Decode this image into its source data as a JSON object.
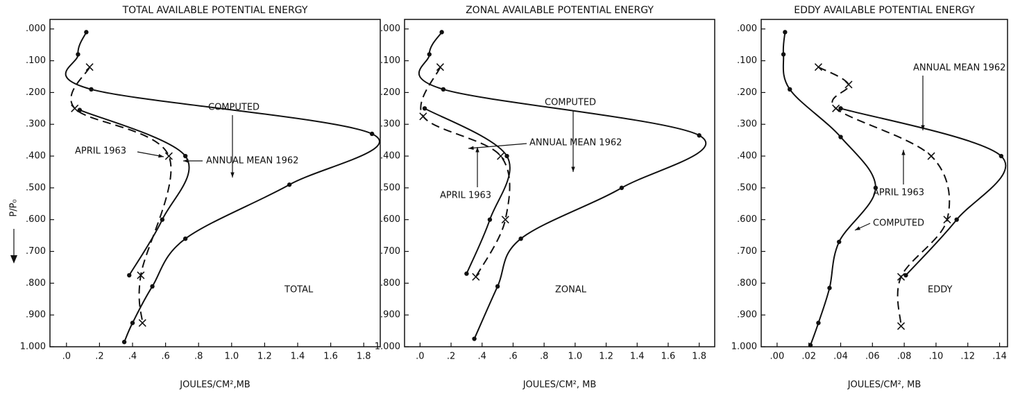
{
  "chart_data": [
    {
      "type": "line",
      "title": "TOTAL AVAILABLE POTENTIAL ENERGY",
      "xlabel": "JOULES/CM²,MB",
      "ylabel": "P/P₀",
      "xlim": [
        -0.1,
        1.9
      ],
      "ylim": [
        -0.03,
        1.0
      ],
      "y_inverted": true,
      "xticks": [
        {
          "value": 0,
          "label": ".0"
        },
        {
          "value": 0.2,
          "label": ".2"
        },
        {
          "value": 0.4,
          "label": ".4"
        },
        {
          "value": 0.6,
          "label": ".6"
        },
        {
          "value": 0.8,
          "label": ".8"
        },
        {
          "value": 1.0,
          "label": "1.0"
        },
        1.2,
        1.4,
        1.6,
        1.8
      ],
      "yticks": [
        {
          "value": 0,
          "label": ".000"
        },
        {
          "value": 0.1,
          "label": ".100"
        },
        {
          "value": 0.2,
          "label": ".200"
        },
        {
          "value": 0.3,
          "label": ".300"
        },
        {
          "value": 0.4,
          "label": ".400"
        },
        {
          "value": 0.5,
          "label": ".500"
        },
        {
          "value": 0.6,
          "label": ".600"
        },
        {
          "value": 0.7,
          "label": ".700"
        },
        {
          "value": 0.8,
          "label": ".800"
        },
        {
          "value": 0.9,
          "label": ".900"
        },
        {
          "value": 1.0,
          "label": "1.000"
        }
      ],
      "series": [
        {
          "name": "COMPUTED",
          "color": "#111111",
          "dashed": false,
          "marker": "dot",
          "x": [
            0.12,
            0.07,
            0.15,
            1.85,
            1.35,
            0.72,
            0.52,
            0.4,
            0.35
          ],
          "y": [
            0.01,
            0.08,
            0.19,
            0.33,
            0.49,
            0.66,
            0.81,
            0.925,
            0.985
          ]
        },
        {
          "name": "ANNUAL MEAN 1962",
          "color": "#111111",
          "dashed": false,
          "marker": "dot",
          "x": [
            0.08,
            0.72,
            0.58,
            0.38
          ],
          "y": [
            0.255,
            0.4,
            0.6,
            0.775
          ]
        },
        {
          "name": "APRIL 1963",
          "color": "#111111",
          "dashed": true,
          "marker": "x",
          "x": [
            0.14,
            0.05,
            0.62,
            0.45,
            0.46
          ],
          "y": [
            0.12,
            0.25,
            0.4,
            0.775,
            0.925
          ]
        }
      ],
      "panel_label": "TOTAL"
    },
    {
      "type": "line",
      "title": "ZONAL AVAILABLE POTENTIAL ENERGY",
      "xlabel": "JOULES/CM², MB",
      "xlim": [
        -0.1,
        1.9
      ],
      "ylim": [
        -0.03,
        1.0
      ],
      "y_inverted": true,
      "xticks": [
        {
          "value": 0,
          "label": ".0"
        },
        {
          "value": 0.2,
          "label": ".2"
        },
        {
          "value": 0.4,
          "label": ".4"
        },
        {
          "value": 0.6,
          "label": ".6"
        },
        {
          "value": 0.8,
          "label": ".8"
        },
        {
          "value": 1.0,
          "label": "1.0"
        },
        1.2,
        1.4,
        1.6,
        1.8
      ],
      "yticks": [
        {
          "value": 0,
          "label": ".000"
        },
        {
          "value": 0.1,
          "label": ".100"
        },
        {
          "value": 0.2,
          "label": ".200"
        },
        {
          "value": 0.3,
          "label": ".300"
        },
        {
          "value": 0.4,
          "label": ".400"
        },
        {
          "value": 0.5,
          "label": ".500"
        },
        {
          "value": 0.6,
          "label": ".600"
        },
        {
          "value": 0.7,
          "label": ".700"
        },
        {
          "value": 0.8,
          "label": ".800"
        },
        {
          "value": 0.9,
          "label": ".900"
        },
        {
          "value": 1.0,
          "label": "1.000"
        }
      ],
      "series": [
        {
          "name": "COMPUTED",
          "color": "#111111",
          "dashed": false,
          "marker": "dot",
          "x": [
            0.14,
            0.06,
            0.15,
            1.8,
            1.3,
            0.65,
            0.5,
            0.35
          ],
          "y": [
            0.01,
            0.08,
            0.19,
            0.335,
            0.5,
            0.66,
            0.81,
            0.975
          ]
        },
        {
          "name": "ANNUAL MEAN 1962",
          "color": "#111111",
          "dashed": false,
          "marker": "dot",
          "x": [
            0.03,
            0.56,
            0.45,
            0.3
          ],
          "y": [
            0.25,
            0.4,
            0.6,
            0.77
          ]
        },
        {
          "name": "APRIL 1963",
          "color": "#111111",
          "dashed": true,
          "marker": "x",
          "x": [
            0.13,
            0.02,
            0.52,
            0.55,
            0.36
          ],
          "y": [
            0.12,
            0.275,
            0.4,
            0.6,
            0.78
          ]
        }
      ],
      "panel_label": "ZONAL"
    },
    {
      "type": "line",
      "title": "EDDY AVAILABLE POTENTIAL ENERGY",
      "xlabel": "JOULES/CM², MB",
      "xlim": [
        -0.01,
        0.145
      ],
      "ylim": [
        -0.03,
        1.0
      ],
      "y_inverted": true,
      "xticks": [
        {
          "value": 0,
          "label": ".00"
        },
        {
          "value": 0.02,
          "label": ".02"
        },
        {
          "value": 0.04,
          "label": ".04"
        },
        {
          "value": 0.06,
          "label": ".06"
        },
        {
          "value": 0.08,
          "label": ".08"
        },
        {
          "value": 0.1,
          "label": ".10"
        },
        {
          "value": 0.12,
          "label": ".12"
        },
        {
          "value": 0.14,
          "label": ".14"
        }
      ],
      "yticks": [
        {
          "value": 0,
          "label": ".000"
        },
        {
          "value": 0.1,
          "label": ".100"
        },
        {
          "value": 0.2,
          "label": ".200"
        },
        {
          "value": 0.3,
          "label": ".300"
        },
        {
          "value": 0.4,
          "label": ".400"
        },
        {
          "value": 0.5,
          "label": ".500"
        },
        {
          "value": 0.6,
          "label": ".600"
        },
        {
          "value": 0.7,
          "label": ".700"
        },
        {
          "value": 0.8,
          "label": ".800"
        },
        {
          "value": 0.9,
          "label": ".900"
        },
        {
          "value": 1.0,
          "label": "1.000"
        }
      ],
      "series": [
        {
          "name": "COMPUTED",
          "color": "#111111",
          "dashed": false,
          "marker": "dot",
          "x": [
            0.005,
            0.004,
            0.008,
            0.04,
            0.062,
            0.039,
            0.033,
            0.026,
            0.021
          ],
          "y": [
            0.01,
            0.08,
            0.19,
            0.34,
            0.5,
            0.67,
            0.815,
            0.925,
            0.995
          ]
        },
        {
          "name": "ANNUAL MEAN 1962",
          "color": "#111111",
          "dashed": false,
          "marker": "dot",
          "x": [
            0.04,
            0.141,
            0.113,
            0.081
          ],
          "y": [
            0.25,
            0.4,
            0.6,
            0.775
          ]
        },
        {
          "name": "APRIL 1963",
          "color": "#111111",
          "dashed": true,
          "marker": "x",
          "x": [
            0.026,
            0.045,
            0.037,
            0.097,
            0.107,
            0.078,
            0.078
          ],
          "y": [
            0.12,
            0.175,
            0.25,
            0.4,
            0.6,
            0.78,
            0.935
          ]
        }
      ],
      "panel_label": "EDDY"
    }
  ]
}
